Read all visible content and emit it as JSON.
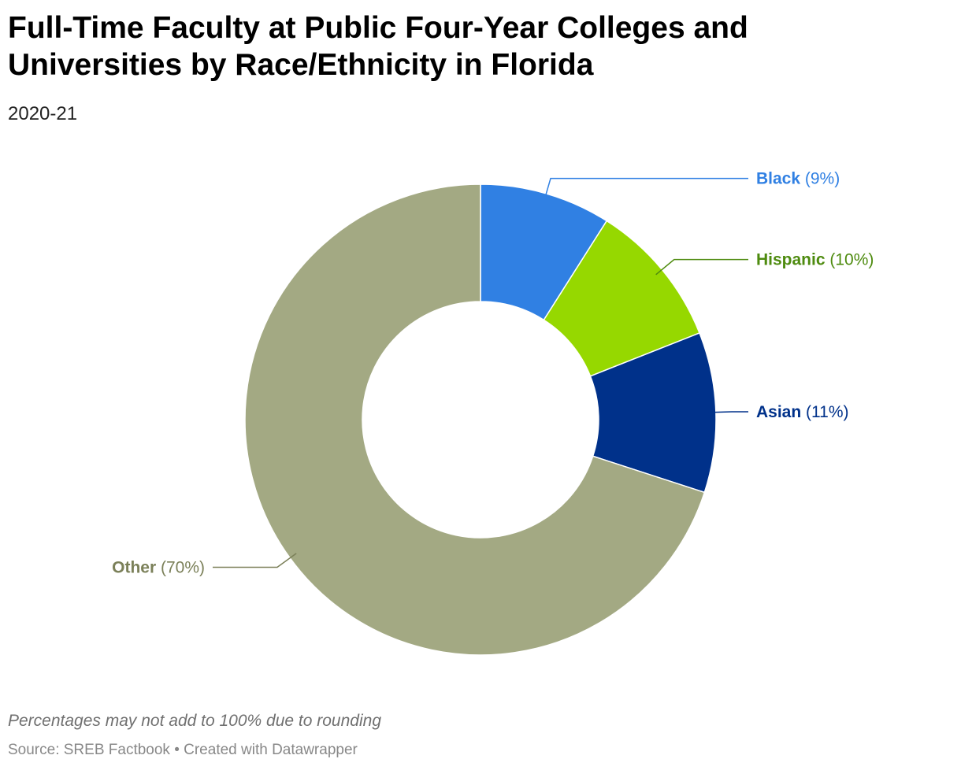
{
  "title": "Full-Time Faculty at Public Four-Year Colleges and Universities by Race/Ethnicity in Florida",
  "subtitle": "2020-21",
  "notes": "Percentages may not add to 100% due to rounding",
  "source": "Source: SREB Factbook • Created with Datawrapper",
  "chart_data": {
    "type": "pie",
    "donut": true,
    "start": "top",
    "direction": "clockwise",
    "slices": [
      {
        "label": "Black",
        "value": 9,
        "display": "(9%)",
        "color": "#3080e3",
        "label_color": "#3080e3",
        "side": "right"
      },
      {
        "label": "Hispanic",
        "value": 10,
        "display": "(10%)",
        "color": "#96d800",
        "label_color": "#4e8b0f",
        "side": "right"
      },
      {
        "label": "Asian",
        "value": 11,
        "display": "(11%)",
        "color": "#00318a",
        "label_color": "#00318a",
        "side": "right"
      },
      {
        "label": "Other",
        "value": 70,
        "display": "(70%)",
        "color": "#a3a983",
        "label_color": "#7b8059",
        "side": "left"
      }
    ]
  }
}
